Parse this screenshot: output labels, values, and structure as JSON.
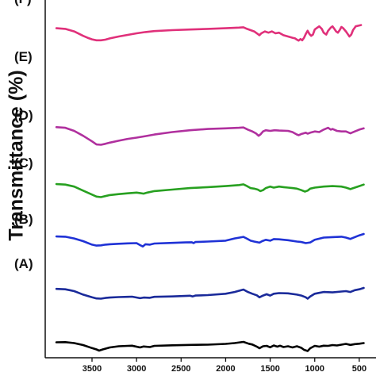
{
  "chart_data": {
    "type": "line",
    "xlabel": "",
    "ylabel": "Transmittance (%)",
    "xlim": [
      3900,
      450
    ],
    "x_reversed": true,
    "xticks": [
      3500,
      3000,
      2500,
      2000,
      1500,
      1000,
      500
    ],
    "xtick_labels": [
      "3500",
      "3000",
      "2500",
      "2000",
      "1500",
      "1000",
      "500"
    ],
    "ylim": [
      0,
      100
    ],
    "grid": false,
    "series": [
      {
        "name": "(A)",
        "color": "#000000",
        "points": [
          [
            3900,
            23
          ],
          [
            3800,
            23.5
          ],
          [
            3700,
            21
          ],
          [
            3600,
            16
          ],
          [
            3500,
            8.5
          ],
          [
            3450,
            5
          ],
          [
            3420,
            2
          ],
          [
            3380,
            5
          ],
          [
            3300,
            10
          ],
          [
            3200,
            13
          ],
          [
            3100,
            14
          ],
          [
            3050,
            14.5
          ],
          [
            2960,
            10
          ],
          [
            2920,
            12.5
          ],
          [
            2850,
            11
          ],
          [
            2800,
            14
          ],
          [
            2600,
            15.5
          ],
          [
            2400,
            16.5
          ],
          [
            2200,
            17
          ],
          [
            2000,
            19
          ],
          [
            1900,
            21
          ],
          [
            1800,
            24
          ],
          [
            1740,
            19.5
          ],
          [
            1700,
            17.5
          ],
          [
            1650,
            12
          ],
          [
            1620,
            8
          ],
          [
            1580,
            13
          ],
          [
            1540,
            14
          ],
          [
            1500,
            10.5
          ],
          [
            1460,
            15
          ],
          [
            1420,
            12
          ],
          [
            1390,
            14.5
          ],
          [
            1350,
            11
          ],
          [
            1300,
            13
          ],
          [
            1250,
            10
          ],
          [
            1200,
            13
          ],
          [
            1150,
            9
          ],
          [
            1120,
            4
          ],
          [
            1080,
            1
          ],
          [
            1050,
            8
          ],
          [
            1000,
            14
          ],
          [
            950,
            12
          ],
          [
            900,
            14.5
          ],
          [
            850,
            14
          ],
          [
            800,
            16
          ],
          [
            750,
            15
          ],
          [
            700,
            17
          ],
          [
            650,
            19
          ],
          [
            600,
            16.5
          ],
          [
            550,
            18.5
          ],
          [
            500,
            19.5
          ],
          [
            450,
            21
          ]
        ]
      },
      {
        "name": "(B)",
        "color": "#1a2a9a",
        "points": [
          [
            3900,
            39
          ],
          [
            3800,
            38
          ],
          [
            3750,
            36
          ],
          [
            3700,
            34
          ],
          [
            3650,
            30
          ],
          [
            3600,
            26
          ],
          [
            3500,
            20
          ],
          [
            3450,
            17.5
          ],
          [
            3400,
            17
          ],
          [
            3350,
            18.5
          ],
          [
            3300,
            19.5
          ],
          [
            3200,
            20.5
          ],
          [
            3100,
            21
          ],
          [
            3050,
            21.5
          ],
          [
            2960,
            18
          ],
          [
            2920,
            19.5
          ],
          [
            2850,
            19
          ],
          [
            2800,
            21
          ],
          [
            2600,
            22
          ],
          [
            2400,
            23.5
          ],
          [
            2370,
            22
          ],
          [
            2340,
            24
          ],
          [
            2200,
            25
          ],
          [
            2000,
            28
          ],
          [
            1900,
            32
          ],
          [
            1800,
            37.5
          ],
          [
            1750,
            32
          ],
          [
            1700,
            28
          ],
          [
            1650,
            24.5
          ],
          [
            1620,
            20
          ],
          [
            1580,
            24
          ],
          [
            1540,
            27
          ],
          [
            1500,
            24
          ],
          [
            1460,
            28
          ],
          [
            1400,
            29.5
          ],
          [
            1300,
            29
          ],
          [
            1200,
            26
          ],
          [
            1150,
            24
          ],
          [
            1100,
            20
          ],
          [
            1080,
            17
          ],
          [
            1050,
            22
          ],
          [
            1000,
            28
          ],
          [
            950,
            30
          ],
          [
            900,
            32
          ],
          [
            800,
            31
          ],
          [
            700,
            33
          ],
          [
            650,
            34
          ],
          [
            600,
            32
          ],
          [
            550,
            36
          ],
          [
            500,
            38
          ],
          [
            450,
            41
          ]
        ]
      },
      {
        "name": "(C)",
        "color": "#1f32d6",
        "points": [
          [
            3900,
            44.5
          ],
          [
            3800,
            44
          ],
          [
            3700,
            40
          ],
          [
            3600,
            34
          ],
          [
            3500,
            26
          ],
          [
            3450,
            24
          ],
          [
            3400,
            24.5
          ],
          [
            3350,
            26
          ],
          [
            3300,
            27
          ],
          [
            3200,
            28
          ],
          [
            3100,
            29
          ],
          [
            3000,
            29.5
          ],
          [
            2960,
            25
          ],
          [
            2930,
            22
          ],
          [
            2900,
            27
          ],
          [
            2850,
            26
          ],
          [
            2800,
            28.5
          ],
          [
            2600,
            30
          ],
          [
            2450,
            31
          ],
          [
            2380,
            31.5
          ],
          [
            2360,
            29.5
          ],
          [
            2340,
            32
          ],
          [
            2200,
            33
          ],
          [
            2000,
            35
          ],
          [
            1900,
            40
          ],
          [
            1800,
            43.5
          ],
          [
            1760,
            39.5
          ],
          [
            1720,
            35
          ],
          [
            1680,
            33
          ],
          [
            1620,
            30.5
          ],
          [
            1590,
            34
          ],
          [
            1550,
            37
          ],
          [
            1500,
            35
          ],
          [
            1460,
            38.5
          ],
          [
            1400,
            38
          ],
          [
            1300,
            36
          ],
          [
            1200,
            33
          ],
          [
            1150,
            32
          ],
          [
            1100,
            29.5
          ],
          [
            1050,
            31
          ],
          [
            1000,
            37
          ],
          [
            950,
            39.5
          ],
          [
            900,
            42
          ],
          [
            800,
            43
          ],
          [
            700,
            44
          ],
          [
            650,
            42
          ],
          [
            600,
            39
          ],
          [
            550,
            43
          ],
          [
            500,
            47
          ],
          [
            450,
            50
          ]
        ]
      },
      {
        "name": "(D)",
        "color": "#27a020",
        "points": [
          [
            3900,
            57
          ],
          [
            3800,
            56
          ],
          [
            3700,
            52
          ],
          [
            3600,
            44
          ],
          [
            3500,
            36
          ],
          [
            3450,
            32
          ],
          [
            3400,
            31
          ],
          [
            3350,
            33
          ],
          [
            3300,
            35
          ],
          [
            3200,
            37
          ],
          [
            3100,
            38.5
          ],
          [
            3000,
            40
          ],
          [
            2960,
            39
          ],
          [
            2920,
            38
          ],
          [
            2880,
            40
          ],
          [
            2800,
            43
          ],
          [
            2600,
            46
          ],
          [
            2400,
            49
          ],
          [
            2200,
            51
          ],
          [
            2000,
            53
          ],
          [
            1850,
            55
          ],
          [
            1800,
            56.5
          ],
          [
            1760,
            53
          ],
          [
            1720,
            49
          ],
          [
            1680,
            48
          ],
          [
            1640,
            46
          ],
          [
            1610,
            43
          ],
          [
            1580,
            45
          ],
          [
            1550,
            49
          ],
          [
            1500,
            52
          ],
          [
            1460,
            50
          ],
          [
            1400,
            52
          ],
          [
            1350,
            51
          ],
          [
            1300,
            50
          ],
          [
            1250,
            49
          ],
          [
            1200,
            48
          ],
          [
            1150,
            45
          ],
          [
            1110,
            42
          ],
          [
            1080,
            44
          ],
          [
            1050,
            48
          ],
          [
            1000,
            50
          ],
          [
            900,
            52
          ],
          [
            800,
            53
          ],
          [
            700,
            52
          ],
          [
            650,
            50
          ],
          [
            600,
            47
          ],
          [
            550,
            50
          ],
          [
            500,
            53
          ],
          [
            450,
            56
          ]
        ]
      },
      {
        "name": "(E)",
        "color": "#b0309e",
        "points": [
          [
            3900,
            74
          ],
          [
            3800,
            73
          ],
          [
            3700,
            68
          ],
          [
            3600,
            60
          ],
          [
            3500,
            51
          ],
          [
            3450,
            46
          ],
          [
            3400,
            45.5
          ],
          [
            3350,
            47
          ],
          [
            3300,
            49
          ],
          [
            3200,
            52
          ],
          [
            3100,
            55
          ],
          [
            3000,
            57
          ],
          [
            2900,
            59.5
          ],
          [
            2800,
            62
          ],
          [
            2600,
            66
          ],
          [
            2400,
            69
          ],
          [
            2200,
            71
          ],
          [
            2000,
            72
          ],
          [
            1850,
            73
          ],
          [
            1800,
            73.5
          ],
          [
            1750,
            70
          ],
          [
            1700,
            67
          ],
          [
            1660,
            64
          ],
          [
            1630,
            60
          ],
          [
            1610,
            62
          ],
          [
            1580,
            67
          ],
          [
            1550,
            69
          ],
          [
            1500,
            68
          ],
          [
            1450,
            69
          ],
          [
            1400,
            68.5
          ],
          [
            1300,
            68
          ],
          [
            1250,
            66
          ],
          [
            1200,
            62
          ],
          [
            1180,
            61
          ],
          [
            1150,
            63
          ],
          [
            1100,
            65
          ],
          [
            1080,
            63.5
          ],
          [
            1050,
            65
          ],
          [
            1000,
            67
          ],
          [
            950,
            66
          ],
          [
            900,
            70
          ],
          [
            850,
            73
          ],
          [
            820,
            70
          ],
          [
            800,
            71
          ],
          [
            750,
            68
          ],
          [
            700,
            67
          ],
          [
            650,
            67
          ],
          [
            600,
            64
          ],
          [
            550,
            67
          ],
          [
            500,
            70
          ],
          [
            450,
            72
          ]
        ]
      },
      {
        "name": "(F)",
        "color": "#e0307a",
        "points": [
          [
            3900,
            93
          ],
          [
            3800,
            92
          ],
          [
            3700,
            88
          ],
          [
            3600,
            81
          ],
          [
            3550,
            78
          ],
          [
            3500,
            75.5
          ],
          [
            3450,
            74
          ],
          [
            3400,
            74
          ],
          [
            3350,
            75
          ],
          [
            3300,
            77
          ],
          [
            3200,
            80
          ],
          [
            3100,
            82.5
          ],
          [
            3000,
            85
          ],
          [
            2900,
            87
          ],
          [
            2800,
            88.5
          ],
          [
            2600,
            90
          ],
          [
            2400,
            91
          ],
          [
            2200,
            92
          ],
          [
            2000,
            93
          ],
          [
            1850,
            94
          ],
          [
            1800,
            94.5
          ],
          [
            1760,
            92
          ],
          [
            1720,
            90
          ],
          [
            1680,
            88
          ],
          [
            1640,
            84
          ],
          [
            1620,
            82
          ],
          [
            1600,
            85
          ],
          [
            1560,
            88
          ],
          [
            1520,
            86
          ],
          [
            1480,
            88
          ],
          [
            1440,
            85
          ],
          [
            1400,
            86
          ],
          [
            1350,
            82
          ],
          [
            1300,
            80
          ],
          [
            1250,
            78
          ],
          [
            1220,
            77
          ],
          [
            1200,
            75
          ],
          [
            1180,
            73.5
          ],
          [
            1160,
            76
          ],
          [
            1140,
            74
          ],
          [
            1120,
            78
          ],
          [
            1100,
            84
          ],
          [
            1080,
            89
          ],
          [
            1060,
            84
          ],
          [
            1040,
            81
          ],
          [
            1020,
            83
          ],
          [
            1000,
            91
          ],
          [
            980,
            93
          ],
          [
            950,
            96
          ],
          [
            920,
            92
          ],
          [
            900,
            86
          ],
          [
            870,
            83
          ],
          [
            850,
            89
          ],
          [
            820,
            94
          ],
          [
            800,
            96
          ],
          [
            780,
            92
          ],
          [
            760,
            88
          ],
          [
            740,
            86
          ],
          [
            720,
            90
          ],
          [
            700,
            95
          ],
          [
            680,
            93
          ],
          [
            650,
            88
          ],
          [
            630,
            84
          ],
          [
            610,
            80
          ],
          [
            590,
            83
          ],
          [
            570,
            90
          ],
          [
            540,
            96
          ],
          [
            510,
            97
          ],
          [
            480,
            98
          ]
        ]
      }
    ]
  }
}
